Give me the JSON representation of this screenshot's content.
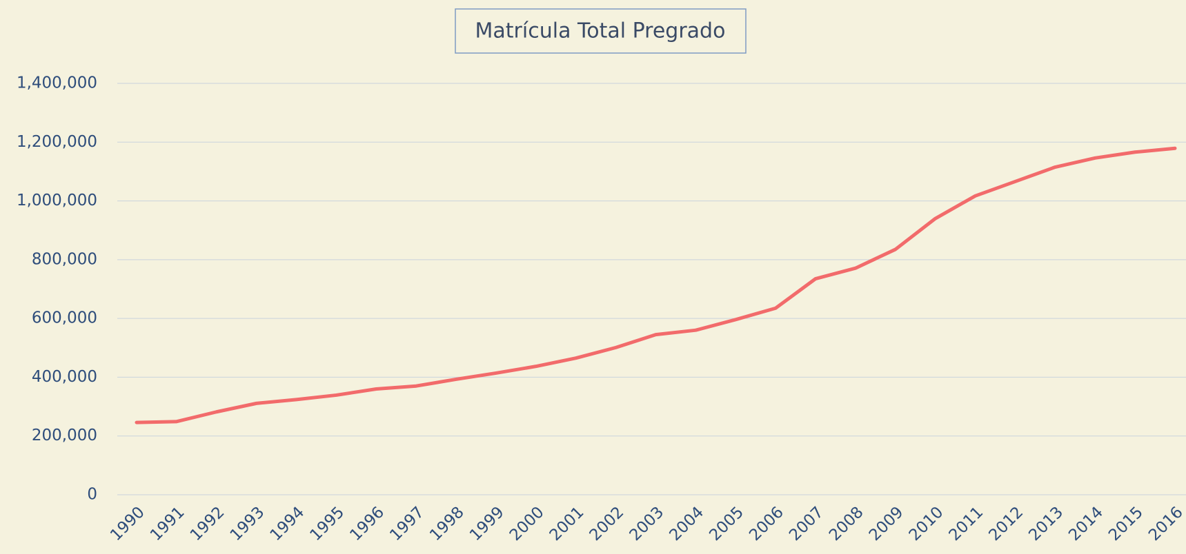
{
  "chart_data": {
    "type": "line",
    "title": "Matrícula Total Pregrado",
    "categories": [
      "1990",
      "1991",
      "1992",
      "1993",
      "1994",
      "1995",
      "1996",
      "1997",
      "1998",
      "1999",
      "2000",
      "2001",
      "2002",
      "2003",
      "2004",
      "2005",
      "2006",
      "2007",
      "2008",
      "2009",
      "2010",
      "2011",
      "2012",
      "2013",
      "2014",
      "2015",
      "2016"
    ],
    "values": [
      246000,
      249000,
      282000,
      311000,
      324000,
      339000,
      360000,
      370000,
      393000,
      414000,
      437000,
      465000,
      501000,
      545000,
      560000,
      596000,
      635000,
      735000,
      771000,
      835000,
      940000,
      1017000,
      1066000,
      1115000,
      1146000,
      1166000,
      1179000
    ],
    "color": "#f26b6b",
    "ylim": [
      0,
      1400000
    ],
    "yticks": [
      0,
      {
        "value": 200000,
        "label": "200,000"
      },
      {
        "value": 400000,
        "label": "400,000"
      },
      {
        "value": 600000,
        "label": "600,000"
      },
      {
        "value": 800000,
        "label": "800,000"
      },
      {
        "value": 1000000,
        "label": "1,000,000"
      },
      {
        "value": 1200000,
        "label": "1,200,000"
      },
      {
        "value": 1400000,
        "label": "1,400,000"
      }
    ],
    "grid": true
  }
}
